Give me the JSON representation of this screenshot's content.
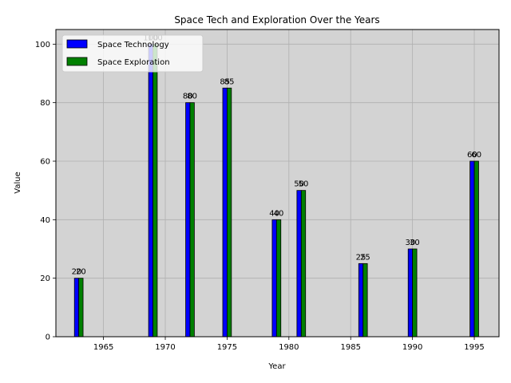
{
  "chart_data": {
    "type": "bar",
    "title": "Space Tech and Exploration Over the Years",
    "xlabel": "Year",
    "ylabel": "Value",
    "x": [
      1963,
      1969,
      1972,
      1975,
      1979,
      1981,
      1986,
      1990,
      1995
    ],
    "series": [
      {
        "name": "Space Technology",
        "values": [
          20,
          100,
          80,
          85,
          40,
          50,
          25,
          30,
          60
        ],
        "color": "#0000ff"
      },
      {
        "name": "Space Exploration",
        "values": [
          20,
          100,
          80,
          85,
          40,
          50,
          25,
          30,
          60
        ],
        "color": "#008000"
      }
    ],
    "xlim": [
      1961.15,
      1997
    ],
    "ylim": [
      0,
      105
    ],
    "xticks": [
      1965,
      1970,
      1975,
      1980,
      1985,
      1990,
      1995
    ],
    "yticks": [
      0,
      20,
      40,
      60,
      80,
      100
    ],
    "grid": true,
    "legend_position": "top-left",
    "plot_background": "#d3d3d3"
  }
}
